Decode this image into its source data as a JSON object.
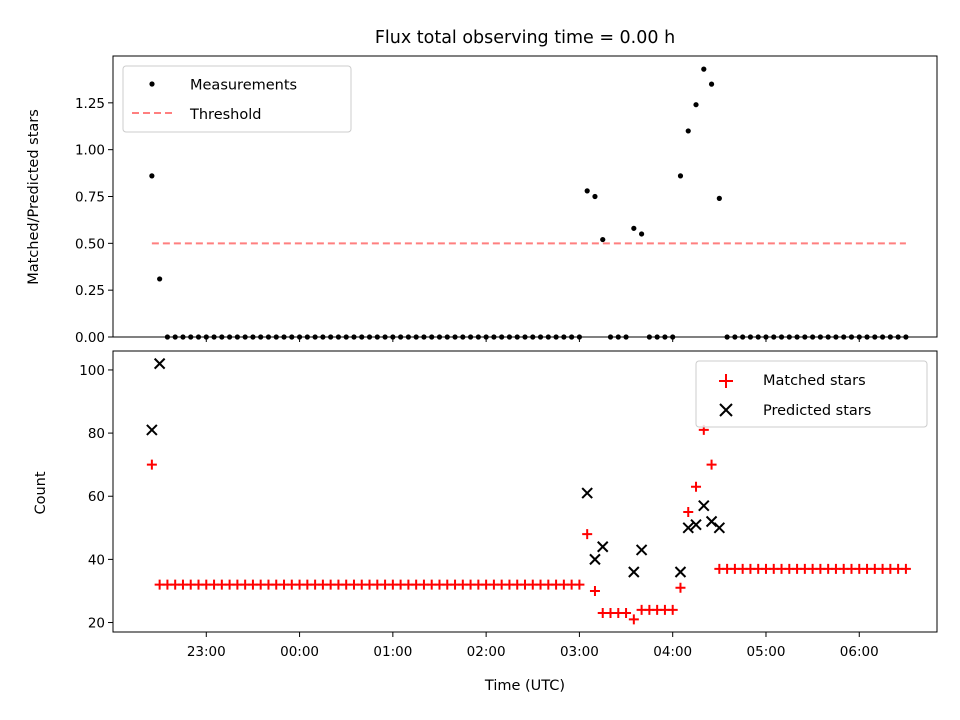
{
  "chart_data": [
    {
      "type": "scatter",
      "title": "Flux total observing time = 0.00 h",
      "xlabel": "",
      "ylabel": "Matched/Predicted stars",
      "ylim": [
        0,
        1.5
      ],
      "yticks": [
        "0.00",
        "0.25",
        "0.50",
        "0.75",
        "1.00",
        "1.25"
      ],
      "legend_position": "top-left",
      "threshold": {
        "name": "Threshold",
        "y": 0.5,
        "x_start": "22:25",
        "x_end": "06:30",
        "color": "#ff7f7f"
      },
      "series": [
        {
          "name": "Measurements",
          "color": "#000000",
          "x": [
            "22:25",
            "22:30",
            "22:35",
            "22:40",
            "22:45",
            "22:50",
            "22:55",
            "23:00",
            "23:05",
            "23:10",
            "23:15",
            "23:20",
            "23:25",
            "23:30",
            "23:35",
            "23:40",
            "23:45",
            "23:50",
            "23:55",
            "00:00",
            "00:05",
            "00:10",
            "00:15",
            "00:20",
            "00:25",
            "00:30",
            "00:35",
            "00:40",
            "00:45",
            "00:50",
            "00:55",
            "01:00",
            "01:05",
            "01:10",
            "01:15",
            "01:20",
            "01:25",
            "01:30",
            "01:35",
            "01:40",
            "01:45",
            "01:50",
            "01:55",
            "02:00",
            "02:05",
            "02:10",
            "02:15",
            "02:20",
            "02:25",
            "02:30",
            "02:35",
            "02:40",
            "02:45",
            "02:50",
            "02:55",
            "03:00",
            "03:05",
            "03:10",
            "03:15",
            "03:20",
            "03:25",
            "03:30",
            "03:35",
            "03:40",
            "03:45",
            "03:50",
            "03:55",
            "04:00",
            "04:05",
            "04:10",
            "04:15",
            "04:20",
            "04:25",
            "04:30",
            "04:35",
            "04:40",
            "04:45",
            "04:50",
            "04:55",
            "05:00",
            "05:05",
            "05:10",
            "05:15",
            "05:20",
            "05:25",
            "05:30",
            "05:35",
            "05:40",
            "05:45",
            "05:50",
            "05:55",
            "06:00",
            "06:05",
            "06:10",
            "06:15",
            "06:20",
            "06:25",
            "06:30"
          ],
          "values": [
            0.86,
            0.31,
            0,
            0,
            0,
            0,
            0,
            0,
            0,
            0,
            0,
            0,
            0,
            0,
            0,
            0,
            0,
            0,
            0,
            0,
            0,
            0,
            0,
            0,
            0,
            0,
            0,
            0,
            0,
            0,
            0,
            0,
            0,
            0,
            0,
            0,
            0,
            0,
            0,
            0,
            0,
            0,
            0,
            0,
            0,
            0,
            0,
            0,
            0,
            0,
            0,
            0,
            0,
            0,
            0,
            0,
            0.78,
            0.75,
            0.52,
            0,
            0,
            0,
            0.58,
            0.55,
            0,
            0,
            0,
            0,
            0.86,
            1.1,
            1.24,
            1.43,
            1.35,
            0.74,
            0,
            0,
            0,
            0,
            0,
            0,
            0,
            0,
            0,
            0,
            0,
            0,
            0,
            0,
            0,
            0,
            0,
            0,
            0,
            0,
            0,
            0,
            0,
            0
          ]
        }
      ]
    },
    {
      "type": "scatter",
      "title": "",
      "xlabel": "Time (UTC)",
      "ylabel": "Count",
      "ylim": [
        17,
        106
      ],
      "yticks": [
        "20",
        "40",
        "60",
        "80",
        "100"
      ],
      "xticks": [
        "23:00",
        "00:00",
        "01:00",
        "02:00",
        "03:00",
        "04:00",
        "05:00",
        "06:00"
      ],
      "x_domain": [
        "22:00",
        "06:50"
      ],
      "legend_position": "top-right",
      "series": [
        {
          "name": "Matched stars",
          "color": "#ff0000",
          "marker": "plus",
          "x": [
            "22:25",
            "22:30",
            "22:35",
            "22:40",
            "22:45",
            "22:50",
            "22:55",
            "23:00",
            "23:05",
            "23:10",
            "23:15",
            "23:20",
            "23:25",
            "23:30",
            "23:35",
            "23:40",
            "23:45",
            "23:50",
            "23:55",
            "00:00",
            "00:05",
            "00:10",
            "00:15",
            "00:20",
            "00:25",
            "00:30",
            "00:35",
            "00:40",
            "00:45",
            "00:50",
            "00:55",
            "01:00",
            "01:05",
            "01:10",
            "01:15",
            "01:20",
            "01:25",
            "01:30",
            "01:35",
            "01:40",
            "01:45",
            "01:50",
            "01:55",
            "02:00",
            "02:05",
            "02:10",
            "02:15",
            "02:20",
            "02:25",
            "02:30",
            "02:35",
            "02:40",
            "02:45",
            "02:50",
            "02:55",
            "03:00",
            "03:05",
            "03:10",
            "03:15",
            "03:20",
            "03:25",
            "03:30",
            "03:35",
            "03:40",
            "03:45",
            "03:50",
            "03:55",
            "04:00",
            "04:05",
            "04:10",
            "04:15",
            "04:20",
            "04:25",
            "04:30",
            "04:35",
            "04:40",
            "04:45",
            "04:50",
            "04:55",
            "05:00",
            "05:05",
            "05:10",
            "05:15",
            "05:20",
            "05:25",
            "05:30",
            "05:35",
            "05:40",
            "05:45",
            "05:50",
            "05:55",
            "06:00",
            "06:05",
            "06:10",
            "06:15",
            "06:20",
            "06:25",
            "06:30"
          ],
          "values": [
            70,
            32,
            32,
            32,
            32,
            32,
            32,
            32,
            32,
            32,
            32,
            32,
            32,
            32,
            32,
            32,
            32,
            32,
            32,
            32,
            32,
            32,
            32,
            32,
            32,
            32,
            32,
            32,
            32,
            32,
            32,
            32,
            32,
            32,
            32,
            32,
            32,
            32,
            32,
            32,
            32,
            32,
            32,
            32,
            32,
            32,
            32,
            32,
            32,
            32,
            32,
            32,
            32,
            32,
            32,
            32,
            48,
            30,
            23,
            23,
            23,
            23,
            21,
            24,
            24,
            24,
            24,
            24,
            31,
            55,
            63,
            81,
            70,
            37,
            37,
            37,
            37,
            37,
            37,
            37,
            37,
            37,
            37,
            37,
            37,
            37,
            37,
            37,
            37,
            37,
            37,
            37,
            37,
            37,
            37,
            37,
            37,
            37
          ]
        },
        {
          "name": "Predicted stars",
          "color": "#000000",
          "marker": "x",
          "x": [
            "22:25",
            "22:30",
            "03:05",
            "03:10",
            "03:15",
            "03:35",
            "03:40",
            "04:05",
            "04:10",
            "04:15",
            "04:20",
            "04:25",
            "04:30"
          ],
          "values": [
            81,
            102,
            61,
            40,
            44,
            36,
            43,
            36,
            50,
            51,
            57,
            52,
            50
          ]
        }
      ]
    }
  ]
}
